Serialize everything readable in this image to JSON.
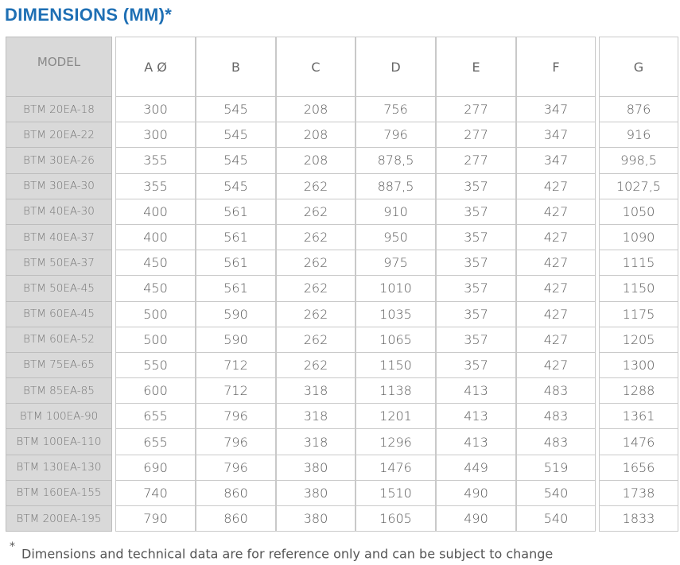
{
  "title": "DIMENSIONS (MM)*",
  "columns": [
    "MODEL",
    "A Ø",
    "B",
    "C",
    "D",
    "E",
    "F",
    "G"
  ],
  "rows": [
    [
      "BTM 20EA-18",
      "300",
      "545",
      "208",
      "756",
      "277",
      "347",
      "876"
    ],
    [
      "BTM 20EA-22",
      "300",
      "545",
      "208",
      "796",
      "277",
      "347",
      "916"
    ],
    [
      "BTM 30EA-26",
      "355",
      "545",
      "208",
      "878,5",
      "277",
      "347",
      "998,5"
    ],
    [
      "BTM 30EA-30",
      "355",
      "545",
      "262",
      "887,5",
      "357",
      "427",
      "1027,5"
    ],
    [
      "BTM 40EA-30",
      "400",
      "561",
      "262",
      "910",
      "357",
      "427",
      "1050"
    ],
    [
      "BTM 40EA-37",
      "400",
      "561",
      "262",
      "950",
      "357",
      "427",
      "1090"
    ],
    [
      "BTM 50EA-37",
      "450",
      "561",
      "262",
      "975",
      "357",
      "427",
      "1115"
    ],
    [
      "BTM 50EA-45",
      "450",
      "561",
      "262",
      "1010",
      "357",
      "427",
      "1150"
    ],
    [
      "BTM 60EA-45",
      "500",
      "590",
      "262",
      "1035",
      "357",
      "427",
      "1175"
    ],
    [
      "BTM 60EA-52",
      "500",
      "590",
      "262",
      "1065",
      "357",
      "427",
      "1205"
    ],
    [
      "BTM 75EA-65",
      "550",
      "712",
      "262",
      "1150",
      "357",
      "427",
      "1300"
    ],
    [
      "BTM 85EA-85",
      "600",
      "712",
      "318",
      "1138",
      "413",
      "483",
      "1288"
    ],
    [
      "BTM 100EA-90",
      "655",
      "796",
      "318",
      "1201",
      "413",
      "483",
      "1361"
    ],
    [
      "BTM 100EA-110",
      "655",
      "796",
      "318",
      "1296",
      "413",
      "483",
      "1476"
    ],
    [
      "BTM 130EA-130",
      "690",
      "796",
      "380",
      "1476",
      "449",
      "519",
      "1656"
    ],
    [
      "BTM 160EA-155",
      "740",
      "860",
      "380",
      "1510",
      "490",
      "540",
      "1738"
    ],
    [
      "BTM 200EA-195",
      "790",
      "860",
      "380",
      "1605",
      "490",
      "540",
      "1833"
    ]
  ],
  "footnote": {
    "marker": "*",
    "text": "Dimensions and technical data are for reference only and can be subject to change"
  },
  "colors": {
    "title": "#1e6fb4",
    "model_column_bg": "#d9d9d9"
  }
}
